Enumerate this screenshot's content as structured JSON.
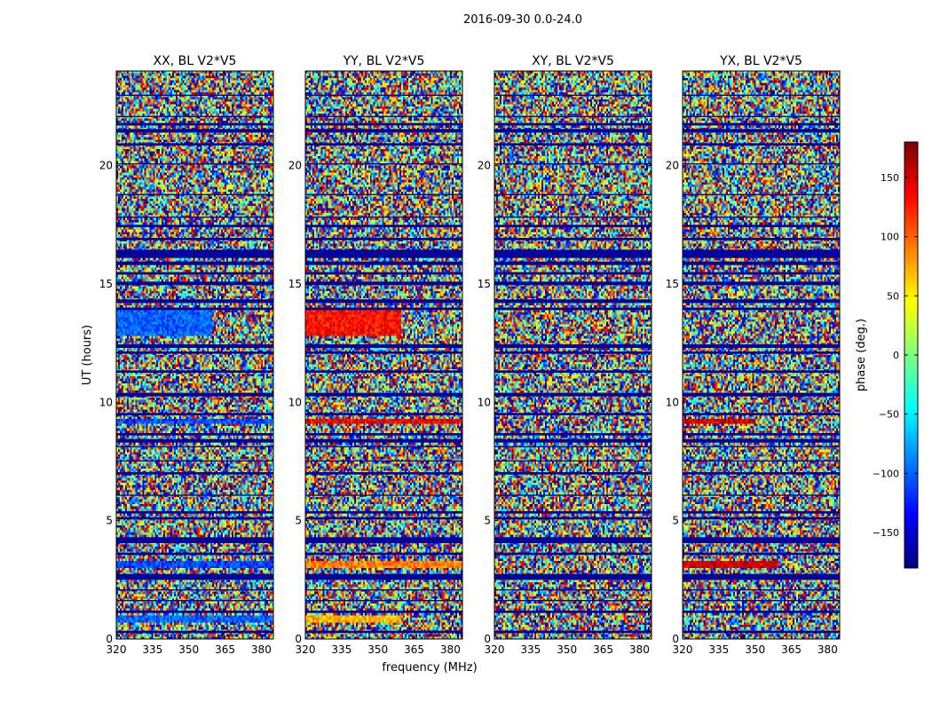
{
  "figure": {
    "suptitle": "2016-09-30 0.0-24.0"
  },
  "chart_data": {
    "type": "heatmap",
    "shared_xlabel": "frequency (MHz)",
    "shared_ylabel": "UT (hours)",
    "xlim": [
      320,
      385
    ],
    "ylim": [
      0,
      24
    ],
    "xticks": [
      320,
      335,
      350,
      365,
      380
    ],
    "yticks": [
      0,
      5,
      10,
      15,
      20
    ],
    "colormap": "jet",
    "colorbar": {
      "label": "phase (deg.)",
      "range": [
        -180,
        180
      ],
      "ticks": [
        -150,
        -100,
        -50,
        0,
        50,
        100,
        150
      ],
      "colors": [
        "#00007f",
        "#0000ff",
        "#007fff",
        "#00ffff",
        "#7fff7f",
        "#ffff00",
        "#ff7f00",
        "#ff0000",
        "#7f0000"
      ]
    },
    "panels": [
      {
        "title": "XX, BL V2*V5",
        "polarization": "XX",
        "features": [
          {
            "ut": [
              12.8,
              14.0
            ],
            "freq": [
              320,
              360
            ],
            "phase": -100
          },
          {
            "ut": [
              9.1,
              9.3
            ],
            "freq": [
              320,
              385
            ],
            "phase": -110
          },
          {
            "ut": [
              3.0,
              3.3
            ],
            "freq": [
              320,
              385
            ],
            "phase": -110
          },
          {
            "ut": [
              0.7,
              1.0
            ],
            "freq": [
              320,
              385
            ],
            "phase": -100
          }
        ]
      },
      {
        "title": "YY, BL V2*V5",
        "polarization": "YY",
        "features": [
          {
            "ut": [
              12.8,
              14.0
            ],
            "freq": [
              320,
              360
            ],
            "phase": 130
          },
          {
            "ut": [
              9.1,
              9.3
            ],
            "freq": [
              320,
              385
            ],
            "phase": 140
          },
          {
            "ut": [
              3.0,
              3.3
            ],
            "freq": [
              320,
              385
            ],
            "phase": 90
          },
          {
            "ut": [
              0.7,
              1.0
            ],
            "freq": [
              320,
              360
            ],
            "phase": 70
          }
        ]
      },
      {
        "title": "XY, BL V2*V5",
        "polarization": "XY",
        "features": []
      },
      {
        "title": "YX, BL V2*V5",
        "polarization": "YX",
        "features": [
          {
            "ut": [
              9.1,
              9.3
            ],
            "freq": [
              320,
              350
            ],
            "phase": 150
          },
          {
            "ut": [
              3.0,
              3.3
            ],
            "freq": [
              320,
              360
            ],
            "phase": 150
          }
        ]
      }
    ],
    "flagged_ut_bands_phase": -170,
    "flagged_ut_bands": [
      [
        0.25,
        0.35
      ],
      [
        1.1,
        1.2
      ],
      [
        1.6,
        1.65
      ],
      [
        2.05,
        2.1
      ],
      [
        2.5,
        2.75
      ],
      [
        3.55,
        3.65
      ],
      [
        4.05,
        4.3
      ],
      [
        5.05,
        5.15
      ],
      [
        5.3,
        5.4
      ],
      [
        6.05,
        6.1
      ],
      [
        6.95,
        7.05
      ],
      [
        7.5,
        7.55
      ],
      [
        8.1,
        8.15
      ],
      [
        8.3,
        8.45
      ],
      [
        8.6,
        8.7
      ],
      [
        9.45,
        9.55
      ],
      [
        10.25,
        10.4
      ],
      [
        11.25,
        11.35
      ],
      [
        12.05,
        12.15
      ],
      [
        12.3,
        12.45
      ],
      [
        13.9,
        14.0
      ],
      [
        14.2,
        14.35
      ],
      [
        14.95,
        15.1
      ],
      [
        15.4,
        15.5
      ],
      [
        15.8,
        15.95
      ],
      [
        16.1,
        16.45
      ],
      [
        16.85,
        16.95
      ],
      [
        17.4,
        17.5
      ],
      [
        17.8,
        17.85
      ],
      [
        18.75,
        18.8
      ],
      [
        20.05,
        20.1
      ],
      [
        20.85,
        20.95
      ],
      [
        21.4,
        21.55
      ],
      [
        21.7,
        21.8
      ],
      [
        22.05,
        22.1
      ],
      [
        22.95,
        23.0
      ]
    ]
  }
}
